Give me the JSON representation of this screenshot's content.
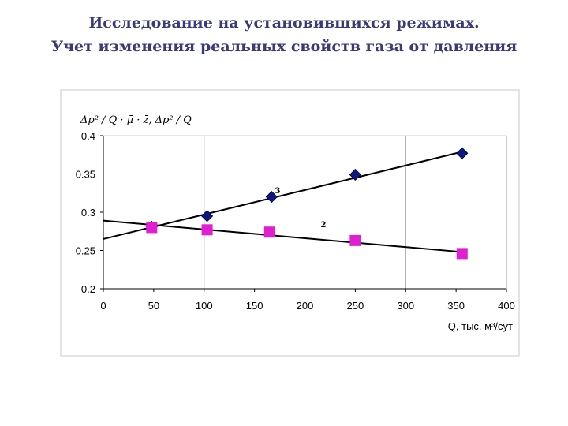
{
  "slide": {
    "title_line1": "Исследование на установившихся режимах.",
    "title_line2": "Учет изменения реальных свойств газа от давления"
  },
  "colors": {
    "series_diamond": "#0a1a80",
    "series_square": "#e020d0",
    "trend_line": "#000000",
    "grid": "#9a9a9a",
    "frame": "#c8c8c8"
  },
  "chart_data": {
    "type": "scatter",
    "ylabel": "Δp² / Q · μ̄ · z̄, Δp² / Q",
    "xlabel": "Q, тыс. м³/сут",
    "xlim": [
      0,
      400
    ],
    "ylim": [
      0.2,
      0.4
    ],
    "x_ticks": [
      "0",
      "50",
      "100",
      "150",
      "200",
      "250",
      "300",
      "350",
      "400"
    ],
    "y_ticks": [
      "0.2",
      "0.25",
      "0.3",
      "0.35",
      "0.4"
    ],
    "grid": "vertical at 100, 200, 300, 400",
    "annotations": [
      "3",
      "2"
    ],
    "series": [
      {
        "marker": "diamond",
        "label": "3",
        "points": [
          [
            48,
            0.281
          ],
          [
            103,
            0.295
          ],
          [
            167,
            0.32
          ],
          [
            250,
            0.349
          ],
          [
            356,
            0.377
          ]
        ],
        "trendline": [
          [
            0,
            0.265
          ],
          [
            356,
            0.379
          ]
        ]
      },
      {
        "marker": "square",
        "label": "2",
        "points": [
          [
            48,
            0.28
          ],
          [
            103,
            0.277
          ],
          [
            165,
            0.274
          ],
          [
            250,
            0.263
          ],
          [
            356,
            0.246
          ]
        ],
        "trendline": [
          [
            0,
            0.289
          ],
          [
            356,
            0.248
          ]
        ]
      }
    ]
  }
}
